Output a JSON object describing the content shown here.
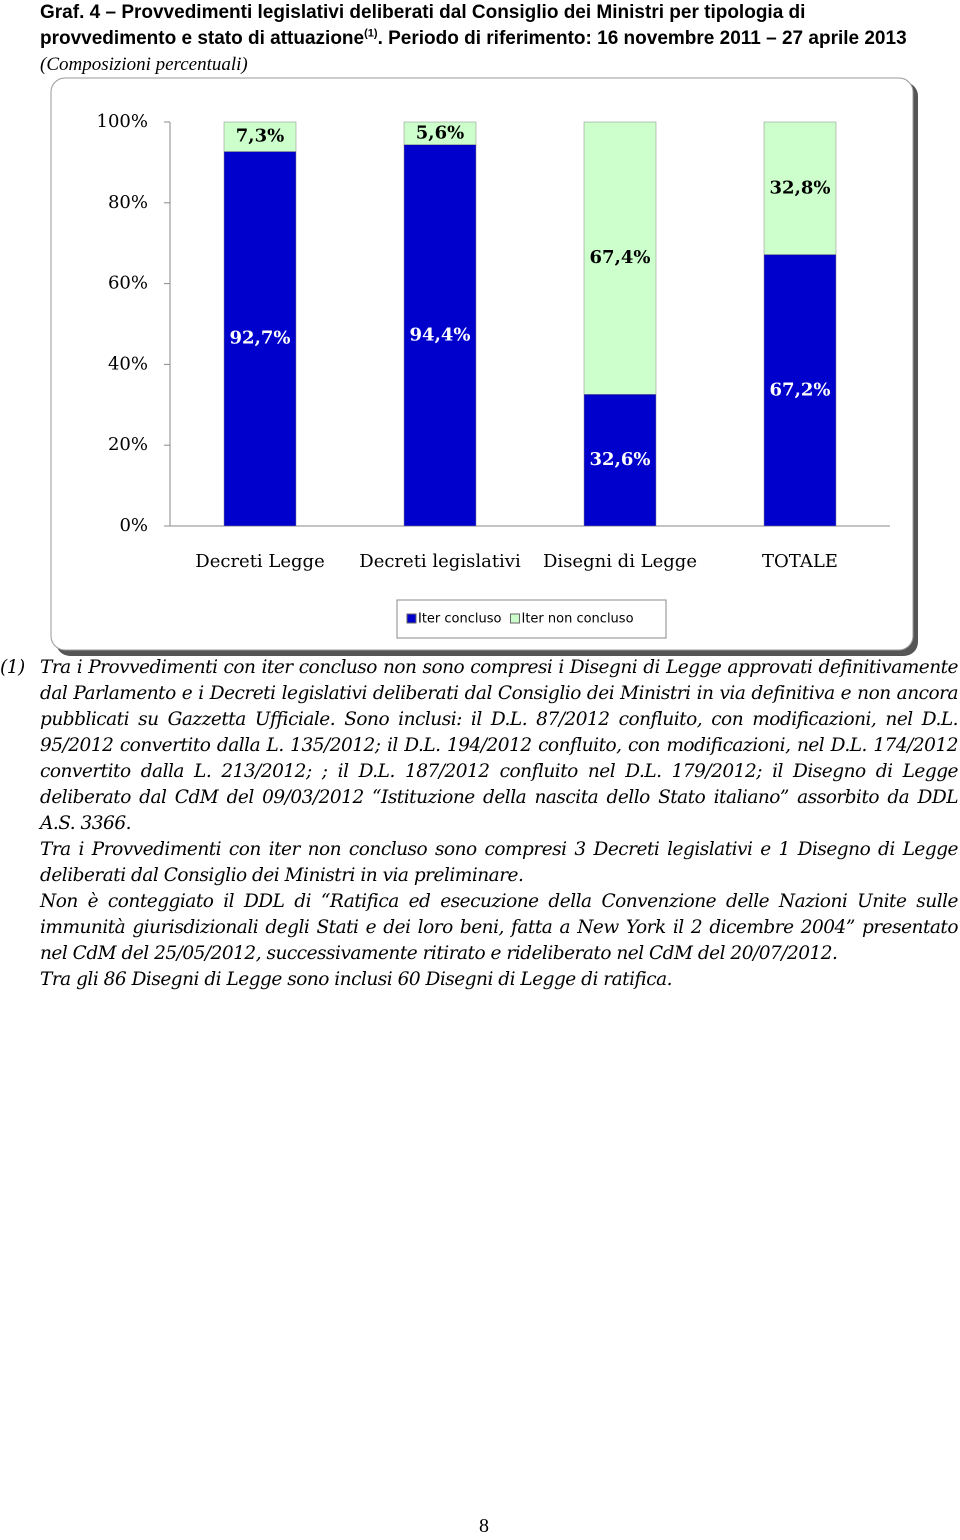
{
  "header": {
    "title_main": "Graf. 4 – Provvedimenti legislativi deliberati dal Consiglio dei Ministri per tipologia di provvedimento e stato di attuazione",
    "title_sup": "(1)",
    "title_period": ". Periodo di riferimento: 16 novembre 2011 – 27 aprile 2013",
    "title_note": "(Composizioni percentuali)"
  },
  "chart_data": {
    "type": "stacked_bar",
    "categories": [
      "Decreti Legge",
      "Decreti legislativi",
      "Disegni di Legge",
      "TOTALE"
    ],
    "series": [
      {
        "name": "Iter concluso",
        "color": "#0000cc",
        "label_color": "#ffffff",
        "values": [
          92.7,
          94.4,
          32.6,
          67.2
        ],
        "value_labels": [
          "92,7%",
          "94,4%",
          "32,6%",
          "67,2%"
        ]
      },
      {
        "name": "Iter non concluso",
        "color": "#ccffcc",
        "label_color": "#000000",
        "values": [
          7.3,
          5.6,
          67.4,
          32.8
        ],
        "value_labels": [
          "7,3%",
          "5,6%",
          "67,4%",
          "32,8%"
        ]
      }
    ],
    "ylim": [
      0,
      100
    ],
    "yticks": [
      {
        "value": 0,
        "label": "0%"
      },
      {
        "value": 20,
        "label": "20%"
      },
      {
        "value": 40,
        "label": "40%"
      },
      {
        "value": 60,
        "label": "60%"
      },
      {
        "value": 80,
        "label": "80%"
      },
      {
        "value": 100,
        "label": "100%"
      }
    ],
    "legend": "bottom"
  },
  "notes": {
    "marker": "(1)",
    "paragraphs": [
      "Tra i Provvedimenti con iter concluso non sono compresi i Disegni di Legge approvati definitivamente dal Parlamento e i Decreti legislativi deliberati dal Consiglio dei Ministri in via definitiva e non ancora pubblicati su Gazzetta Ufficiale. Sono inclusi: il D.L. 87/2012 confluito, con modificazioni, nel D.L. 95/2012 convertito dalla L. 135/2012; il D.L. 194/2012 confluito, con modificazioni, nel D.L. 174/2012 convertito dalla L. 213/2012; ; il D.L. 187/2012 confluito nel D.L. 179/2012; il Disegno di Legge deliberato dal CdM del 09/03/2012 “Istituzione della nascita dello Stato italiano” assorbito da DDL A.S. 3366.",
      "Tra i Provvedimenti con iter non concluso sono compresi 3 Decreti legislativi e 1 Disegno di Legge deliberati dal Consiglio dei Ministri in via preliminare.",
      "Non è conteggiato il DDL di “Ratifica ed esecuzione della Convenzione delle Nazioni Unite sulle immunità giurisdizionali degli Stati e dei loro beni, fatta a New York il 2 dicembre 2004” presentato nel CdM del 25/05/2012, successivamente ritirato e rideliberato nel CdM del 20/07/2012.",
      "Tra gli 86 Disegni di Legge sono inclusi 60 Disegni di Legge di ratifica."
    ]
  },
  "page_number": "8"
}
